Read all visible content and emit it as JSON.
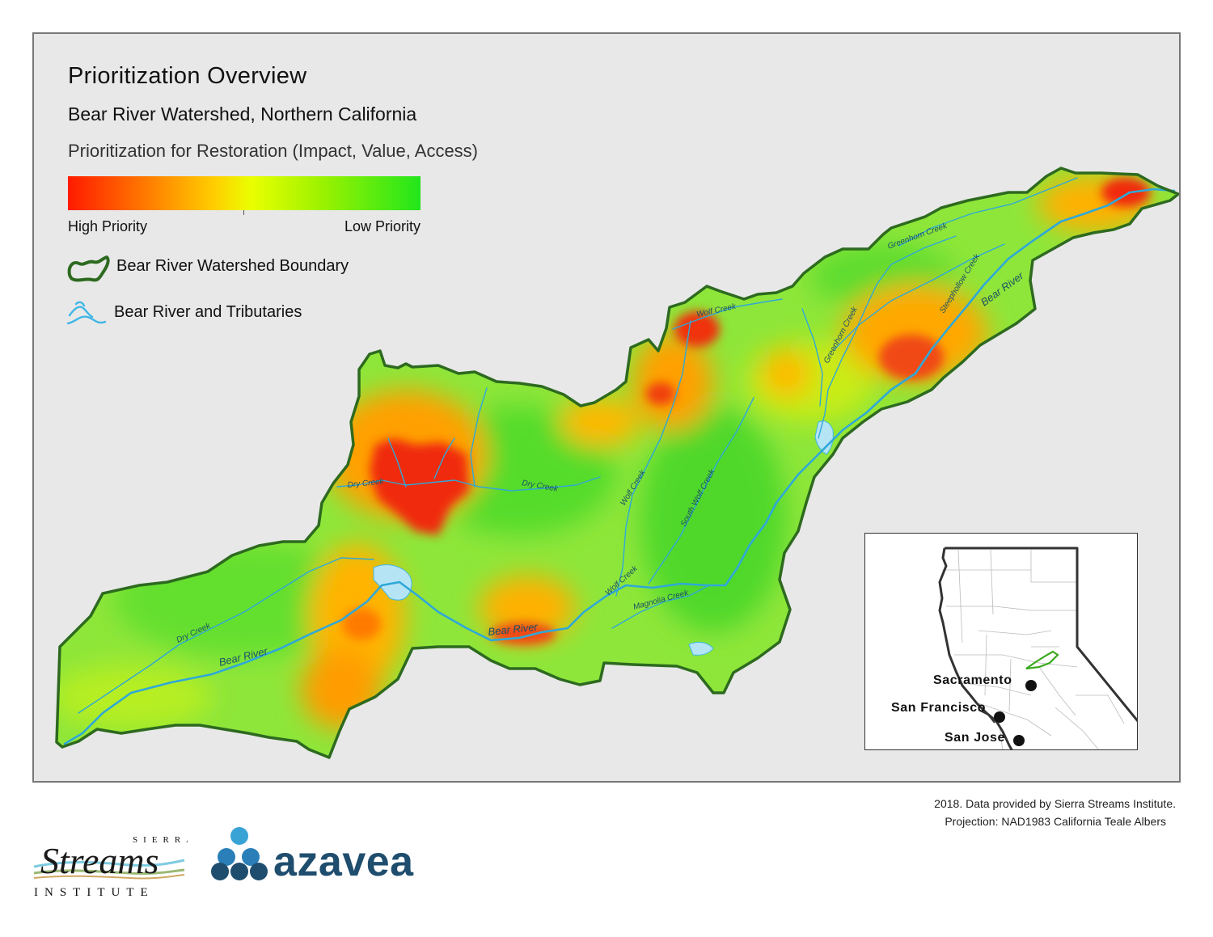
{
  "map": {
    "title": "Prioritization Overview",
    "subtitle": "Bear River Watershed, Northern California",
    "legend_title": "Prioritization for Restoration (Impact, Value, Access)",
    "gradient": {
      "high_label": "High Priority",
      "low_label": "Low Priority",
      "colors": [
        "#ff1a00",
        "#ff7a00",
        "#ffd000",
        "#eaff00",
        "#9cf200",
        "#22e61c"
      ]
    },
    "legend_items": [
      {
        "label": "Bear River Watershed Boundary",
        "color": "#2d6a1f"
      },
      {
        "label": "Bear River and Tributaries",
        "color": "#3fb7e6"
      }
    ],
    "waterways": [
      "Bear River",
      "Bear River",
      "Bear River",
      "Dry Creek",
      "Dry Creek",
      "Dry Creek",
      "Wolf Creek",
      "Wolf Creek",
      "Wolf Creek",
      "South Wolf Creek",
      "Magnolia Creek",
      "Greenhorn Creek",
      "Greenhorn Creek",
      "Steephollow Creek"
    ],
    "inset": {
      "cities": [
        "Sacramento",
        "San Francisco",
        "San Jose"
      ]
    }
  },
  "footer": {
    "credit": "2018. Data provided by Sierra Streams Institute.",
    "projection": "Projection: NAD1983 California Teale Albers"
  },
  "logos": {
    "sierra": {
      "top": "SIERRA",
      "main": "Streams",
      "bottom": "INSTITUTE"
    },
    "azavea": "azavea"
  }
}
